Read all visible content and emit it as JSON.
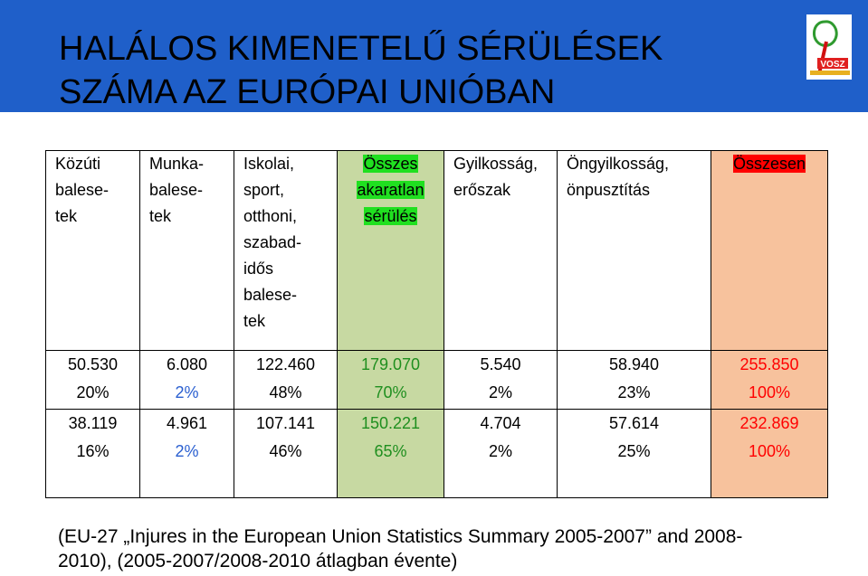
{
  "header": {
    "title_line1": "HALÁLOS KIMENETELŰ SÉRÜLÉSEK",
    "title_line2": "SZÁMA AZ EURÓPAI UNIÓBAN",
    "logo_text": "VOSZ"
  },
  "table": {
    "columns": [
      {
        "label_lines": [
          "Közúti",
          "balese-",
          "tek"
        ]
      },
      {
        "label_lines": [
          "Munka-",
          "balese-",
          "tek"
        ]
      },
      {
        "label_lines": [
          "Iskolai,",
          "sport,",
          "otthoni,",
          "szabad-",
          "idős",
          "balese-",
          "tek"
        ]
      },
      {
        "label_lines": [
          "Összes",
          "akaratlan",
          "sérülés"
        ]
      },
      {
        "label_lines": [
          "Gyilkosság,",
          "erőszak"
        ]
      },
      {
        "label_lines": [
          "Öngyilkosság,",
          "önpusztítás"
        ]
      },
      {
        "label_lines": [
          "Összesen"
        ]
      }
    ],
    "row1": [
      {
        "value": "50.530",
        "pct": "20%"
      },
      {
        "value": "6.080",
        "pct": "2%"
      },
      {
        "value": "122.460",
        "pct": "48%"
      },
      {
        "value": "179.070",
        "pct": "70%"
      },
      {
        "value": "5.540",
        "pct": "2%"
      },
      {
        "value": "58.940",
        "pct": "23%"
      },
      {
        "value": "255.850",
        "pct": "100%"
      }
    ],
    "row2": [
      {
        "value": "38.119",
        "pct": "16%"
      },
      {
        "value": "4.961",
        "pct": "2%"
      },
      {
        "value": "107.141",
        "pct": "46%"
      },
      {
        "value": "150.221",
        "pct": "65%"
      },
      {
        "value": "4.704",
        "pct": "2%"
      },
      {
        "value": "57.614",
        "pct": "25%"
      },
      {
        "value": "232.869",
        "pct": "100%"
      }
    ]
  },
  "footer": {
    "line1": "(EU-27 „Injures in the European Union Statistics Summary 2005-2007” and 2008-",
    "line2": "2010), (2005-2007/2008-2010  átlagban évente)"
  },
  "colors": {
    "header_bg": "#1f5fc9",
    "green_col": "#c7d9a2",
    "orange_col": "#f7c29d",
    "highlight_green": "#20e020",
    "highlight_red": "#ff0000"
  }
}
